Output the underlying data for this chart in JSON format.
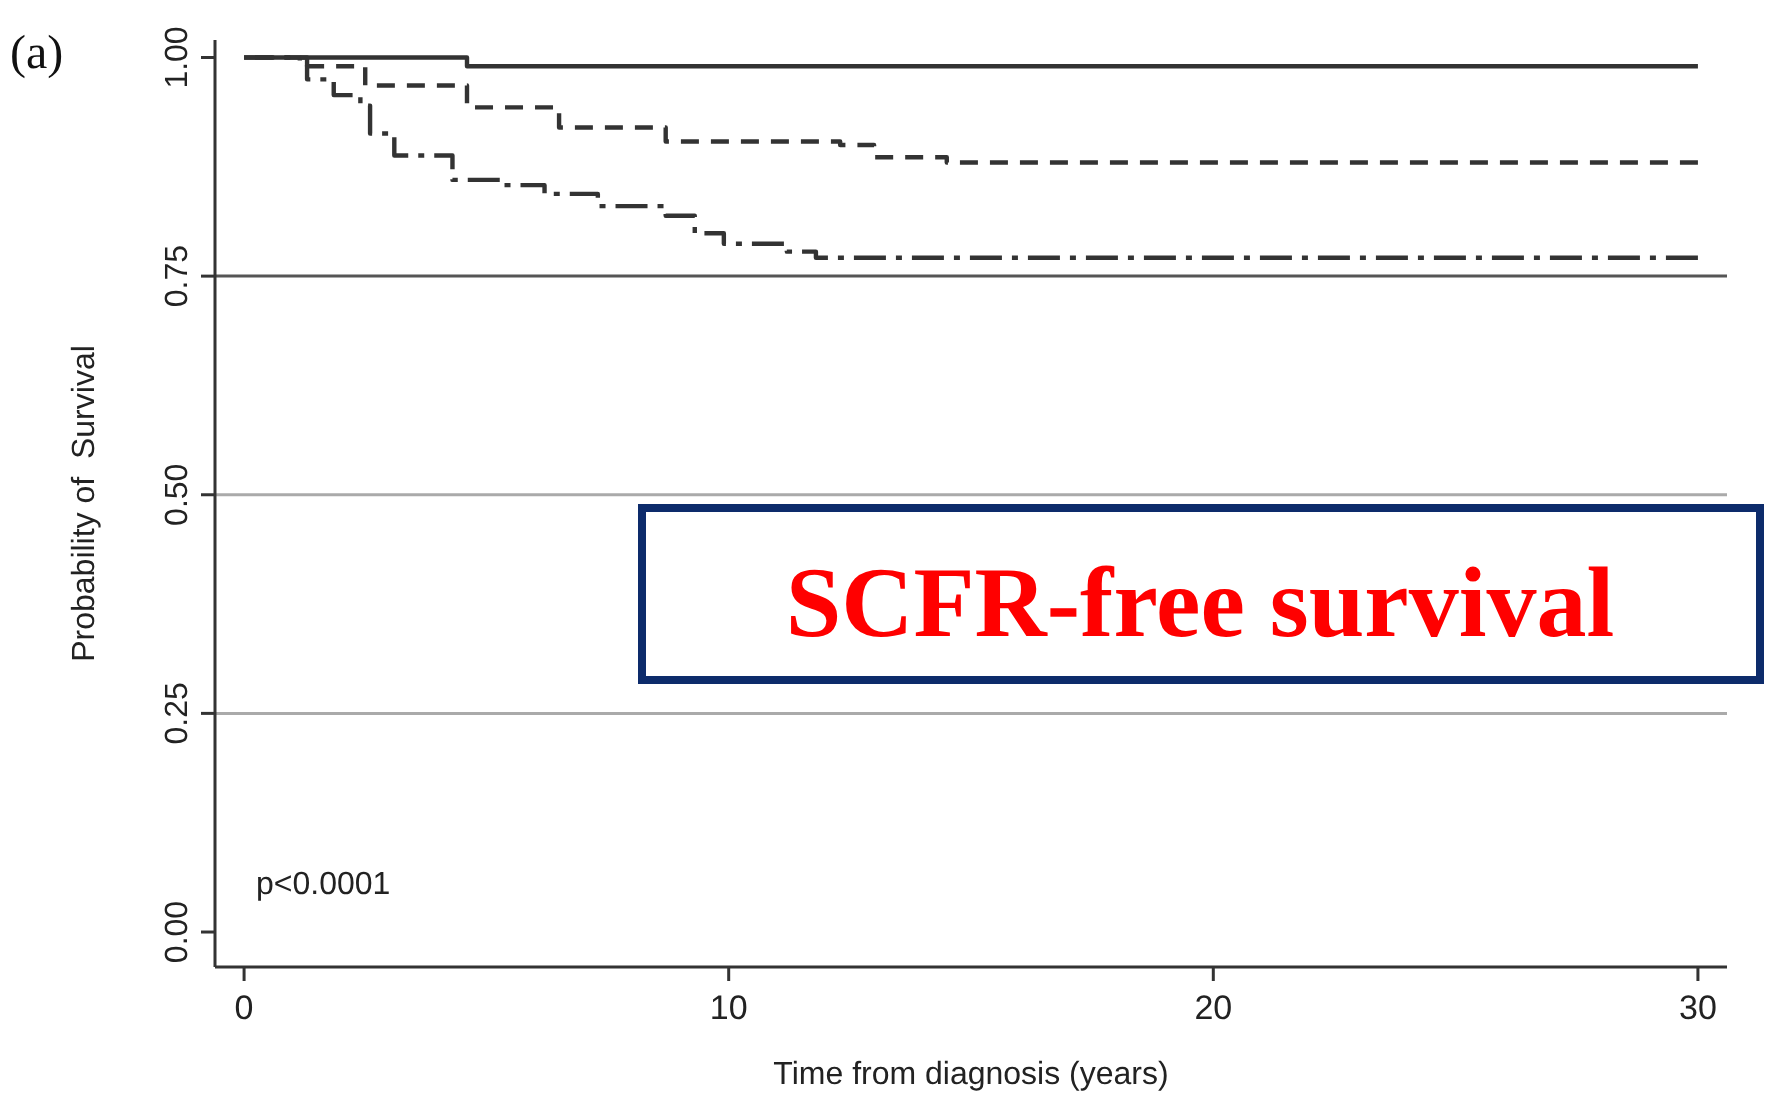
{
  "chart_data": {
    "type": "step",
    "xlabel": "Time from diagnosis (years)",
    "ylabel": "Probability of  Survival",
    "xlim": [
      -0.6,
      30.6
    ],
    "ylim": [
      -0.04,
      1.02
    ],
    "xticks": [
      0,
      10,
      20,
      30
    ],
    "yticks": [
      {
        "value": 0,
        "label": "0.00"
      },
      {
        "value": 0.25,
        "label": "0.25"
      },
      {
        "value": 0.5,
        "label": "0.50"
      },
      {
        "value": 0.75,
        "label": "0.75"
      },
      {
        "value": 1,
        "label": "1.00"
      }
    ],
    "ref_lines": [
      {
        "axis": "y",
        "value": 0.75,
        "color": "#555555"
      },
      {
        "axis": "y",
        "value": 0.5,
        "color": "#aaaaaa"
      },
      {
        "axis": "y",
        "value": 0.25,
        "color": "#aaaaaa"
      }
    ],
    "series": [
      {
        "color": "#333333",
        "line_style": "solid",
        "x": [
          0,
          4.6,
          30
        ],
        "values": [
          1,
          0.99,
          0.99
        ]
      },
      {
        "color": "#333333",
        "line_style": "dashed",
        "x": [
          0,
          1.15,
          1.3,
          2.5,
          4.6,
          6.5,
          8.7,
          12.3,
          13,
          14.5,
          30
        ],
        "values": [
          1,
          0.995,
          0.99,
          0.968,
          0.943,
          0.92,
          0.904,
          0.9,
          0.886,
          0.88,
          0.88
        ]
      },
      {
        "color": "#333333",
        "line_style": "dashdot",
        "x": [
          0,
          1.15,
          1.3,
          1.85,
          2.4,
          2.6,
          3.1,
          4.3,
          5.3,
          6.2,
          7.3,
          8.7,
          9.3,
          9.9,
          11.2,
          11.8,
          30
        ],
        "values": [
          1,
          1,
          0.975,
          0.957,
          0.945,
          0.913,
          0.888,
          0.86,
          0.854,
          0.844,
          0.83,
          0.819,
          0.799,
          0.787,
          0.778,
          0.771,
          0.771
        ]
      }
    ],
    "annotations": [
      "(a)",
      "p<0.0001",
      "SCFR-free survival"
    ]
  }
}
